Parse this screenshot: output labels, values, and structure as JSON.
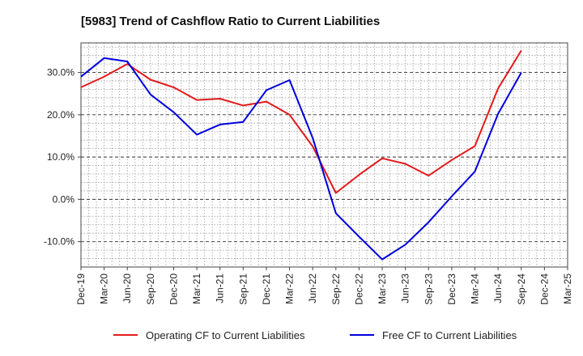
{
  "chart_data": {
    "type": "line",
    "title": "[5983]  Trend of Cashflow Ratio to Current Liabilities",
    "x": [
      "Dec-19",
      "Mar-20",
      "Jun-20",
      "Sep-20",
      "Dec-20",
      "Mar-21",
      "Jun-21",
      "Sep-21",
      "Dec-21",
      "Mar-22",
      "Jun-22",
      "Sep-22",
      "Dec-22",
      "Mar-23",
      "Jun-23",
      "Sep-23",
      "Dec-23",
      "Mar-24",
      "Jun-24",
      "Sep-24",
      "Dec-24",
      "Mar-25"
    ],
    "y_ticks": [
      -10,
      0,
      10,
      20,
      30
    ],
    "y_tick_labels": [
      "-10.0%",
      "0.0%",
      "10.0%",
      "20.0%",
      "30.0%"
    ],
    "ylim": [
      -16,
      37
    ],
    "grid": true,
    "legend_position": "bottom",
    "series": [
      {
        "name": "Operating CF to Current Liabilities",
        "color": "#e31a1c",
        "values": [
          26.5,
          29.0,
          32.0,
          28.3,
          26.5,
          23.5,
          23.8,
          22.2,
          23.1,
          20.0,
          12.5,
          1.5,
          5.8,
          9.7,
          8.4,
          5.6,
          9.3,
          12.6,
          26.2,
          35.2,
          null,
          null
        ]
      },
      {
        "name": "Free CF to Current Liabilities",
        "color": "#0000dd",
        "values": [
          29.0,
          33.4,
          32.6,
          24.8,
          20.6,
          15.3,
          17.7,
          18.3,
          25.8,
          28.2,
          14.5,
          -3.3,
          -8.8,
          -14.2,
          -10.7,
          -5.4,
          0.7,
          6.6,
          20.2,
          30.0,
          null,
          null
        ]
      }
    ]
  }
}
